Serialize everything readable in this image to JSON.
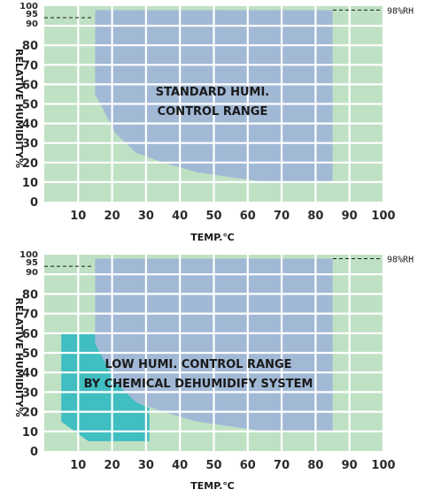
{
  "chart_data": [
    {
      "type": "area",
      "xlabel": "TEMP.℃",
      "ylabel": "RELATIVE HUMIDITY%",
      "xlim": [
        0,
        100
      ],
      "ylim": [
        0,
        100
      ],
      "x_ticks": [
        10,
        20,
        30,
        40,
        50,
        60,
        70,
        80,
        90,
        100
      ],
      "y_ticks": [
        0,
        10,
        20,
        30,
        40,
        50,
        60,
        70,
        80,
        90,
        95,
        100
      ],
      "grid": true,
      "colors": {
        "background": "#bfe1c3",
        "standard": "#9fb5d8",
        "low": "#39bcc2",
        "grid": "#ffffff"
      },
      "reference_line": {
        "y": 98,
        "label": "98%RH"
      },
      "reference_line_left": {
        "y": 95
      },
      "regions": [
        {
          "label_lines": [
            "STANDARD HUMI.",
            "CONTROL RANGE"
          ],
          "color": "standard",
          "polygon": [
            [
              15,
              98
            ],
            [
              85,
              98
            ],
            [
              85,
              10
            ],
            [
              65,
              10
            ],
            [
              45,
              15
            ],
            [
              35,
              20
            ],
            [
              27,
              25
            ],
            [
              21,
              35
            ],
            [
              15,
              55
            ]
          ]
        }
      ]
    },
    {
      "type": "area",
      "xlabel": "TEMP.℃",
      "ylabel": "RELATIVE HUMIDITY%",
      "xlim": [
        0,
        100
      ],
      "ylim": [
        0,
        100
      ],
      "x_ticks": [
        10,
        20,
        30,
        40,
        50,
        60,
        70,
        80,
        90,
        100
      ],
      "y_ticks": [
        0,
        10,
        20,
        30,
        40,
        50,
        60,
        70,
        80,
        90,
        95,
        100
      ],
      "grid": true,
      "colors": {
        "background": "#bfe1c3",
        "standard": "#9fb5d8",
        "low": "#39bcc2",
        "grid": "#ffffff"
      },
      "reference_line": {
        "y": 98,
        "label": "98%RH"
      },
      "reference_line_left": {
        "y": 95
      },
      "regions": [
        {
          "label_lines": [],
          "color": "low",
          "polygon": [
            [
              5,
              60
            ],
            [
              15,
              60
            ],
            [
              15,
              55
            ],
            [
              21,
              35
            ],
            [
              27,
              25
            ],
            [
              31,
              22
            ],
            [
              31,
              5
            ],
            [
              13,
              5
            ],
            [
              5,
              15
            ]
          ]
        },
        {
          "label_lines": [
            "LOW HUMI. CONTROL RANGE",
            "BY CHEMICAL DEHUMIDIFY SYSTEM"
          ],
          "color": "standard",
          "polygon": [
            [
              15,
              98
            ],
            [
              85,
              98
            ],
            [
              85,
              10
            ],
            [
              65,
              10
            ],
            [
              45,
              15
            ],
            [
              35,
              20
            ],
            [
              27,
              25
            ],
            [
              21,
              35
            ],
            [
              15,
              55
            ]
          ]
        }
      ]
    }
  ]
}
